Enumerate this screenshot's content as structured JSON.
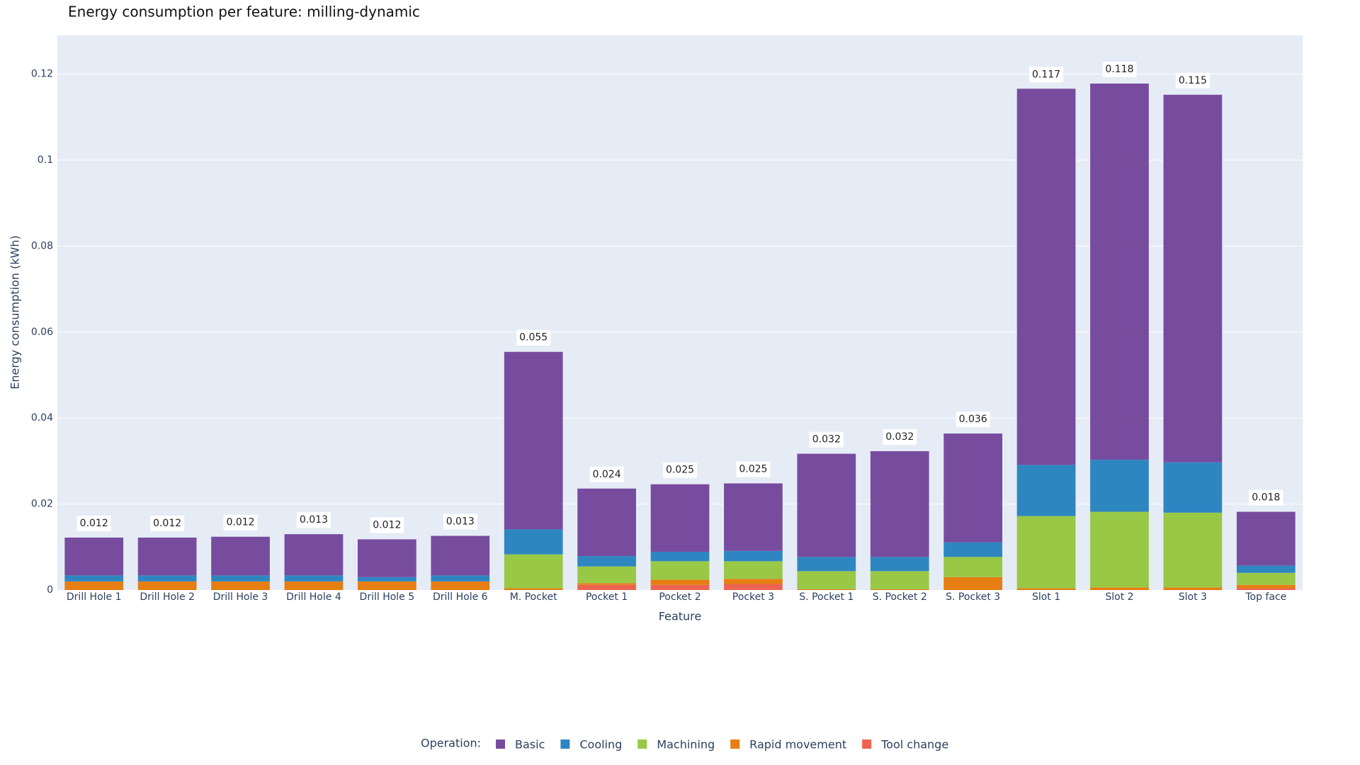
{
  "chart_data": {
    "type": "stacked_bar",
    "title": "Energy consumption per feature: milling-dynamic",
    "x_label": "Feature",
    "y_label": "Energy consumption (kWh)",
    "legend_title": "Operation:",
    "legend_position": "bottom",
    "grid": true,
    "categories": [
      "Drill Hole 1",
      "Drill Hole 2",
      "Drill Hole 3",
      "Drill Hole 4",
      "Drill Hole 5",
      "Drill Hole 6",
      "M. Pocket",
      "Pocket 1",
      "Pocket 2",
      "Pocket 3",
      "S. Pocket 1",
      "S. Pocket 2",
      "S. Pocket 3",
      "Slot 1",
      "Slot 2",
      "Slot 3",
      "Top face"
    ],
    "series": [
      {
        "name": "Basic",
        "color": "#774c9f",
        "values": [
          0.0088,
          0.0088,
          0.009,
          0.0096,
          0.0088,
          0.0092,
          0.0413,
          0.0157,
          0.0157,
          0.0157,
          0.024,
          0.0246,
          0.0253,
          0.0875,
          0.0875,
          0.0855,
          0.0125
        ]
      },
      {
        "name": "Cooling",
        "color": "#2e86c1",
        "values": [
          0.0014,
          0.0014,
          0.0014,
          0.0014,
          0.001,
          0.0014,
          0.0058,
          0.0024,
          0.0022,
          0.0024,
          0.0033,
          0.0033,
          0.0034,
          0.0119,
          0.0121,
          0.0117,
          0.0017
        ]
      },
      {
        "name": "Machining",
        "color": "#98c846",
        "values": [
          0,
          0,
          0,
          0,
          0,
          0,
          0.0079,
          0.0039,
          0.0043,
          0.0041,
          0.0042,
          0.0042,
          0.0047,
          0.0168,
          0.0176,
          0.0174,
          0.0028
        ]
      },
      {
        "name": "Rapid movement",
        "color": "#e67e13",
        "values": [
          0.002,
          0.002,
          0.002,
          0.002,
          0.002,
          0.002,
          0.0004,
          0.0004,
          0.0012,
          0.0012,
          0.0002,
          0.0002,
          0.003,
          0.0004,
          0.0006,
          0.0006,
          0.0008
        ]
      },
      {
        "name": "Tool change",
        "color": "#ec6452",
        "values": [
          0,
          0,
          0,
          0,
          0,
          0,
          0,
          0.0012,
          0.0012,
          0.0014,
          0,
          0,
          0,
          0,
          0,
          0,
          0.0004
        ]
      }
    ],
    "totals": {
      "values": [
        0.0122,
        0.0122,
        0.0124,
        0.013,
        0.0118,
        0.0126,
        0.0554,
        0.0236,
        0.0246,
        0.0248,
        0.0317,
        0.0323,
        0.0364,
        0.1166,
        0.1178,
        0.1152,
        0.0182
      ],
      "value_labels": [
        "0.012",
        "0.012",
        "0.012",
        "0.013",
        "0.012",
        "0.013",
        "0.055",
        "0.024",
        "0.025",
        "0.025",
        "0.032",
        "0.032",
        "0.036",
        "0.117",
        "0.118",
        "0.115",
        "0.018"
      ]
    },
    "ylim": [
      0,
      0.129
    ],
    "yticks": [
      0,
      0.02,
      0.04,
      0.06,
      0.08,
      0.1,
      0.12
    ]
  }
}
